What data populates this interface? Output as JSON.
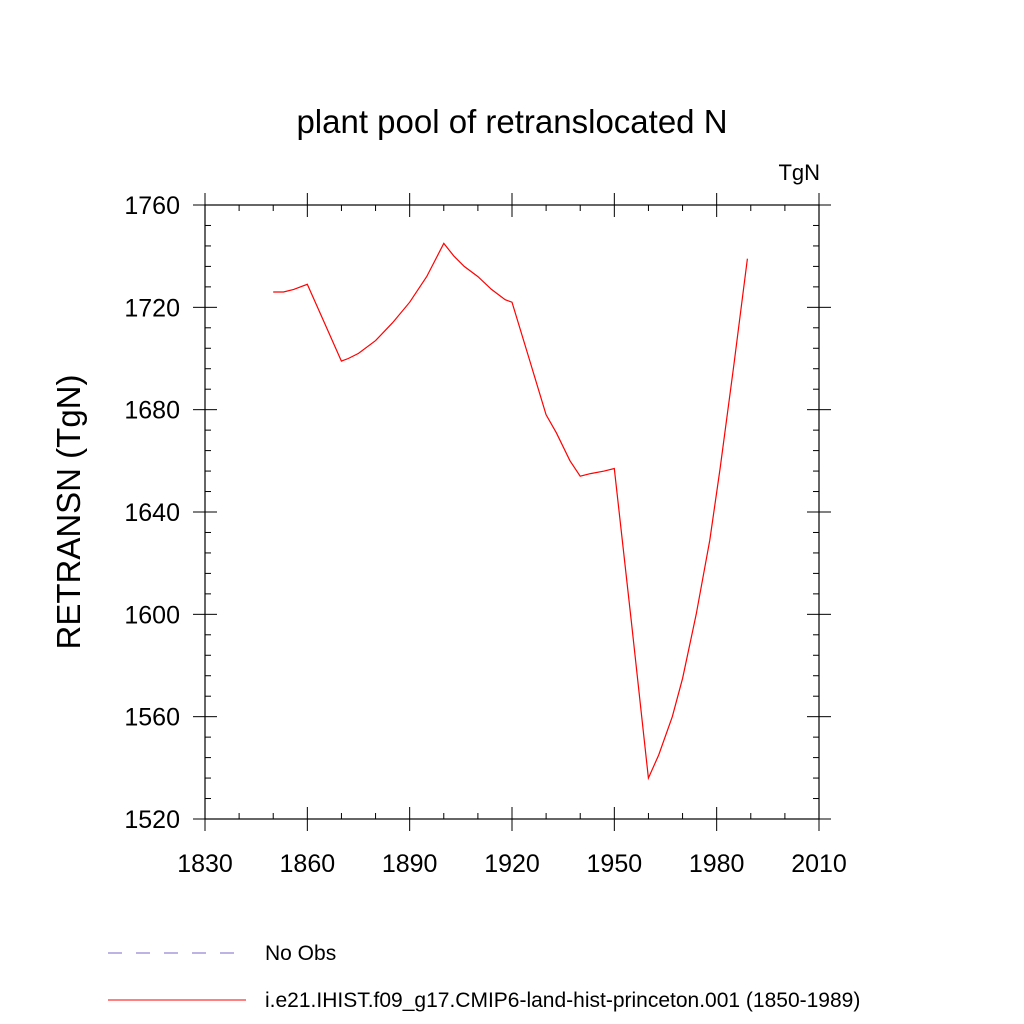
{
  "chart_data": {
    "type": "line",
    "title": "plant pool of retranslocated N",
    "units_label": "TgN",
    "xlabel": "",
    "ylabel": "RETRANSN  (TgN)",
    "xlim": [
      1830,
      2010
    ],
    "ylim": [
      1520,
      1760
    ],
    "x_ticks": [
      1830,
      1860,
      1890,
      1920,
      1950,
      1980,
      2010
    ],
    "y_ticks": [
      1520,
      1560,
      1600,
      1640,
      1680,
      1720,
      1760
    ],
    "x_tick_labels": [
      "1830",
      "1860",
      "1890",
      "1920",
      "1950",
      "1980",
      "2010"
    ],
    "y_tick_labels": [
      "1520",
      "1560",
      "1600",
      "1640",
      "1680",
      "1720",
      "1760"
    ],
    "grid": false,
    "legend_position": "bottom-left",
    "series": [
      {
        "name": "No Obs",
        "color": "#7b68c8",
        "dash": "dashed",
        "x": [],
        "y": []
      },
      {
        "name": "i.e21.IHIST.f09_g17.CMIP6-land-hist-princeton.001 (1850-1989)",
        "color": "#ff0000",
        "dash": "solid",
        "x": [
          1850,
          1853,
          1856,
          1860,
          1865,
          1870,
          1872,
          1875,
          1880,
          1885,
          1890,
          1895,
          1900,
          1903,
          1906,
          1910,
          1914,
          1918,
          1920,
          1925,
          1930,
          1933,
          1937,
          1940,
          1943,
          1947,
          1950,
          1955,
          1960,
          1963,
          1967,
          1970,
          1974,
          1978,
          1981,
          1985,
          1989
        ],
        "y": [
          1726,
          1726,
          1727,
          1729,
          1714,
          1699,
          1700,
          1702,
          1707,
          1714,
          1722,
          1732,
          1745,
          1740,
          1736,
          1732,
          1727,
          1723,
          1722,
          1700,
          1678,
          1671,
          1660,
          1654,
          1655,
          1656,
          1657,
          1597,
          1536,
          1545,
          1560,
          1575,
          1600,
          1629,
          1657,
          1697,
          1739
        ]
      }
    ]
  }
}
